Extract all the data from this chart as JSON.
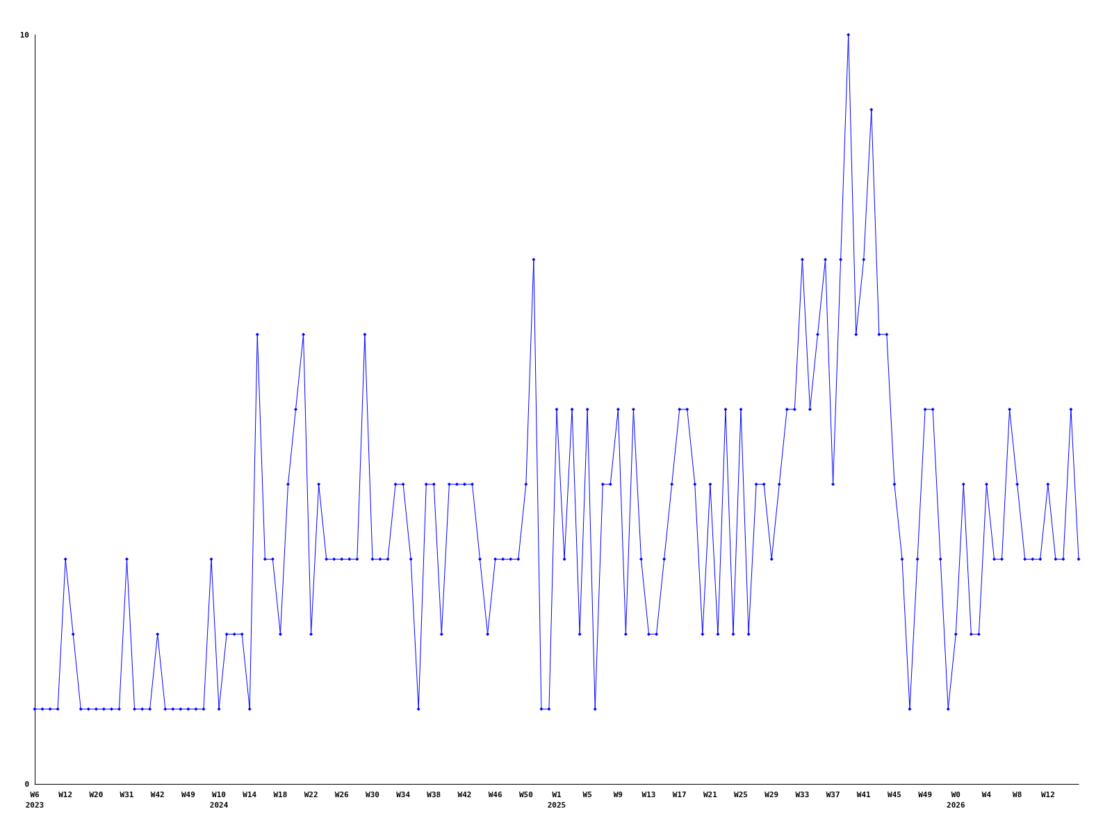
{
  "chart_data": {
    "type": "line",
    "categories": [
      "W6\n2023",
      null,
      null,
      null,
      "W12",
      null,
      null,
      null,
      "W20",
      null,
      null,
      null,
      "W31",
      null,
      null,
      null,
      "W42",
      null,
      null,
      null,
      "W49",
      null,
      null,
      null,
      "W10\n2024",
      null,
      null,
      null,
      "W14",
      null,
      null,
      null,
      "W18",
      null,
      null,
      null,
      "W22",
      null,
      null,
      null,
      "W26",
      null,
      null,
      null,
      "W30",
      null,
      null,
      null,
      "W34",
      null,
      null,
      null,
      "W38",
      null,
      null,
      null,
      "W42",
      null,
      null,
      null,
      "W46",
      null,
      null,
      null,
      "W50",
      null,
      null,
      null,
      "W1\n2025",
      null,
      null,
      null,
      "W5",
      null,
      null,
      null,
      "W9",
      null,
      null,
      null,
      "W13",
      null,
      null,
      null,
      "W17",
      null,
      null,
      null,
      "W21",
      null,
      null,
      null,
      "W25",
      null,
      null,
      null,
      "W29",
      null,
      null,
      null,
      "W33",
      null,
      null,
      null,
      "W37",
      null,
      null,
      null,
      "W41",
      null,
      null,
      null,
      "W45",
      null,
      null,
      null,
      "W49",
      null,
      null,
      null,
      "W0\n2026",
      null,
      null,
      null,
      "W4",
      null,
      null,
      null,
      "W8",
      null,
      null,
      null,
      "W12",
      null,
      null,
      null,
      null
    ],
    "series": [
      {
        "color": "#0000ff",
        "values": [
          1,
          1,
          1,
          1,
          3,
          2,
          1,
          1,
          1,
          1,
          1,
          1,
          3,
          1,
          1,
          1,
          2,
          1,
          1,
          1,
          1,
          1,
          1,
          3,
          1,
          2,
          2,
          2,
          1,
          6,
          3,
          3,
          2,
          4,
          5,
          6,
          2,
          4,
          3,
          3,
          3,
          3,
          3,
          6,
          3,
          3,
          3,
          4,
          4,
          3,
          1,
          4,
          4,
          2,
          4,
          4,
          4,
          4,
          3,
          2,
          3,
          3,
          3,
          3,
          4,
          7,
          1,
          1,
          5,
          3,
          5,
          2,
          5,
          1,
          4,
          4,
          5,
          2,
          5,
          3,
          2,
          2,
          3,
          4,
          5,
          5,
          4,
          2,
          4,
          2,
          5,
          2,
          5,
          2,
          4,
          4,
          3,
          4,
          5,
          5,
          7,
          5,
          6,
          7,
          4,
          7,
          10,
          6,
          7,
          9,
          6,
          6,
          4,
          3,
          1,
          3,
          5,
          5,
          3,
          1,
          2,
          4,
          2,
          2,
          4,
          3,
          3,
          5,
          4,
          3,
          3,
          3,
          4,
          3,
          3,
          5,
          3
        ]
      }
    ],
    "ylim": [
      0,
      10
    ],
    "yticks": [
      0,
      10
    ],
    "marker": "diamond",
    "line_style": "solid"
  }
}
